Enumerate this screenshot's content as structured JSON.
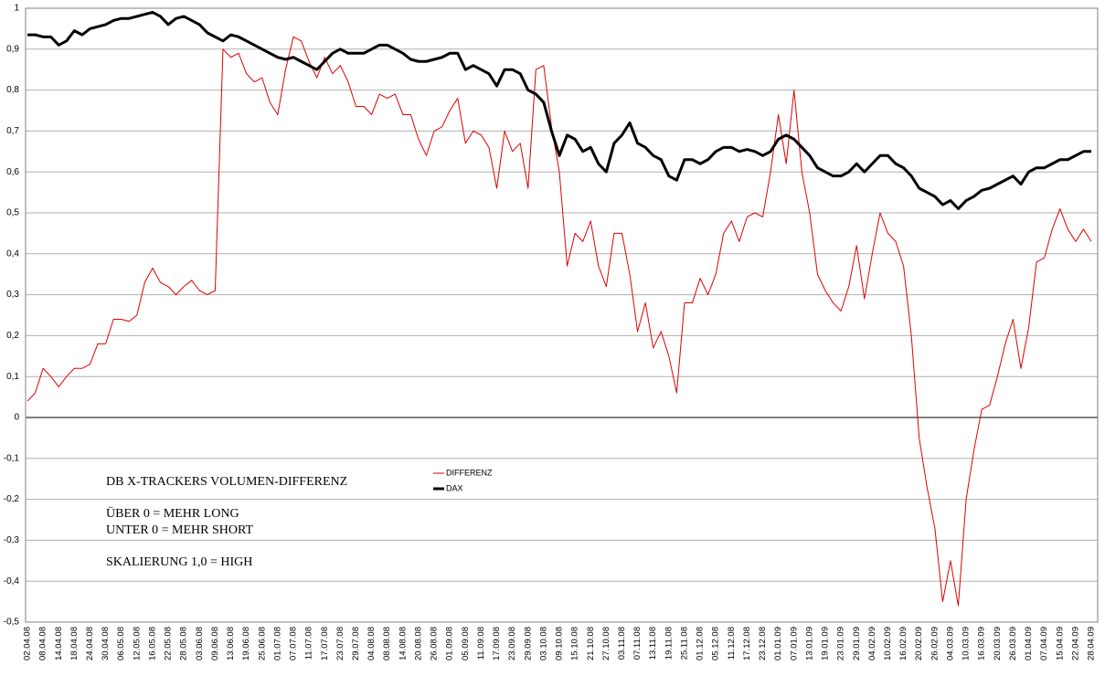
{
  "chart_data": {
    "type": "line",
    "annotations": [
      "DB X-TRACKERS VOLUMEN-DIFFERENZ",
      "ÜBER 0 = MEHR LONG",
      "UNTER 0 = MEHR SHORT",
      "SKALIERUNG 1,0 = HIGH"
    ],
    "categories": [
      "02.04.08",
      null,
      "08.04.08",
      null,
      "14.04.08",
      null,
      "18.04.08",
      null,
      "24.04.08",
      null,
      "30.04.08",
      null,
      "06.05.08",
      null,
      "12.05.08",
      null,
      "16.05.08",
      null,
      "22.05.08",
      null,
      "28.05.08",
      null,
      "03.06.08",
      null,
      "09.06.08",
      null,
      "13.06.08",
      null,
      "19.06.08",
      null,
      "25.06.08",
      null,
      "01.07.08",
      null,
      "07.07.08",
      null,
      "11.07.08",
      null,
      "17.07.08",
      null,
      "23.07.08",
      null,
      "29.07.08",
      null,
      "04.08.08",
      null,
      "08.08.08",
      null,
      "14.08.08",
      null,
      "20.08.08",
      null,
      "26.08.08",
      null,
      "01.09.08",
      null,
      "05.09.08",
      null,
      "11.09.08",
      null,
      "17.09.08",
      null,
      "23.09.08",
      null,
      "29.09.08",
      null,
      "03.10.08",
      null,
      "09.10.08",
      null,
      "15.10.08",
      null,
      "21.10.08",
      null,
      "27.10.08",
      null,
      "03.11.08",
      null,
      "07.11.08",
      null,
      "13.11.08",
      null,
      "19.11.08",
      null,
      "25.11.08",
      null,
      "01.12.08",
      null,
      "05.12.08",
      null,
      "11.12.08",
      null,
      "17.12.08",
      null,
      "23.12.08",
      null,
      "01.01.09",
      null,
      "07.01.09",
      null,
      "13.01.09",
      null,
      "19.01.09",
      null,
      "23.01.09",
      null,
      "29.01.09",
      null,
      "04.02.09",
      null,
      "10.02.09",
      null,
      "16.02.09",
      null,
      "20.02.09",
      null,
      "26.02.09",
      null,
      "04.03.09",
      null,
      "10.03.09",
      null,
      "16.03.09",
      null,
      "20.03.09",
      null,
      "26.03.09",
      null,
      "01.04.09",
      null,
      "07.04.09",
      null,
      "15.04.09",
      null,
      "22.04.09",
      null,
      "28.04.09"
    ],
    "series": [
      {
        "name": "DIFFERENZ",
        "color": "#e00000",
        "width": 1,
        "values": [
          0.04,
          0.06,
          0.12,
          0.1,
          0.075,
          0.1,
          0.12,
          0.12,
          0.13,
          0.18,
          0.18,
          0.24,
          0.24,
          0.235,
          0.25,
          0.33,
          0.365,
          0.33,
          0.32,
          0.3,
          0.32,
          0.335,
          0.31,
          0.3,
          0.31,
          0.9,
          0.88,
          0.89,
          0.84,
          0.82,
          0.83,
          0.77,
          0.74,
          0.85,
          0.93,
          0.92,
          0.87,
          0.83,
          0.88,
          0.84,
          0.86,
          0.82,
          0.76,
          0.76,
          0.74,
          0.79,
          0.78,
          0.79,
          0.74,
          0.74,
          0.68,
          0.64,
          0.7,
          0.71,
          0.75,
          0.78,
          0.67,
          0.7,
          0.69,
          0.66,
          0.56,
          0.7,
          0.65,
          0.67,
          0.56,
          0.85,
          0.86,
          0.71,
          0.6,
          0.37,
          0.45,
          0.43,
          0.48,
          0.37,
          0.32,
          0.45,
          0.45,
          0.35,
          0.21,
          0.28,
          0.17,
          0.21,
          0.15,
          0.06,
          0.28,
          0.28,
          0.34,
          0.3,
          0.35,
          0.45,
          0.48,
          0.43,
          0.49,
          0.5,
          0.49,
          0.6,
          0.74,
          0.62,
          0.8,
          0.6,
          0.5,
          0.35,
          0.31,
          0.28,
          0.26,
          0.32,
          0.42,
          0.29,
          0.4,
          0.5,
          0.45,
          0.43,
          0.37,
          0.2,
          -0.05,
          -0.17,
          -0.27,
          -0.45,
          -0.35,
          -0.46,
          -0.2,
          -0.08,
          0.02,
          0.03,
          0.1,
          0.18,
          0.24,
          0.12,
          0.22,
          0.38,
          0.39,
          0.46,
          0.51,
          0.46,
          0.43,
          0.46,
          0.43
        ]
      },
      {
        "name": "DAX",
        "color": "#000000",
        "width": 3,
        "values": [
          0.935,
          0.935,
          0.93,
          0.93,
          0.91,
          0.92,
          0.945,
          0.935,
          0.95,
          0.955,
          0.96,
          0.97,
          0.975,
          0.975,
          0.98,
          0.985,
          0.99,
          0.98,
          0.96,
          0.975,
          0.98,
          0.97,
          0.96,
          0.94,
          0.93,
          0.92,
          0.935,
          0.93,
          0.92,
          0.91,
          0.9,
          0.89,
          0.88,
          0.875,
          0.88,
          0.87,
          0.86,
          0.85,
          0.87,
          0.89,
          0.9,
          0.89,
          0.89,
          0.89,
          0.9,
          0.91,
          0.91,
          0.9,
          0.89,
          0.875,
          0.87,
          0.87,
          0.875,
          0.88,
          0.89,
          0.89,
          0.85,
          0.86,
          0.85,
          0.84,
          0.81,
          0.85,
          0.85,
          0.84,
          0.8,
          0.79,
          0.77,
          0.7,
          0.64,
          0.69,
          0.68,
          0.65,
          0.66,
          0.62,
          0.6,
          0.67,
          0.69,
          0.72,
          0.67,
          0.66,
          0.64,
          0.63,
          0.59,
          0.58,
          0.63,
          0.63,
          0.62,
          0.63,
          0.65,
          0.66,
          0.66,
          0.65,
          0.655,
          0.65,
          0.64,
          0.65,
          0.68,
          0.69,
          0.68,
          0.66,
          0.64,
          0.61,
          0.6,
          0.59,
          0.59,
          0.6,
          0.62,
          0.6,
          0.62,
          0.64,
          0.64,
          0.62,
          0.61,
          0.59,
          0.56,
          0.55,
          0.54,
          0.52,
          0.53,
          0.51,
          0.53,
          0.54,
          0.555,
          0.56,
          0.57,
          0.58,
          0.59,
          0.57,
          0.6,
          0.61,
          0.61,
          0.62,
          0.63,
          0.63,
          0.64,
          0.65,
          0.65
        ]
      }
    ],
    "ylim": [
      -0.5,
      1
    ],
    "yticks": [
      1,
      {
        "value": 0.9,
        "label": "0,9"
      },
      {
        "value": 0.8,
        "label": "0,8"
      },
      {
        "value": 0.7,
        "label": "0,7"
      },
      {
        "value": 0.6,
        "label": "0,6"
      },
      {
        "value": 0.5,
        "label": "0,5"
      },
      {
        "value": 0.4,
        "label": "0,4"
      },
      {
        "value": 0.3,
        "label": "0,3"
      },
      {
        "value": 0.2,
        "label": "0,2"
      },
      {
        "value": 0.1,
        "label": "0,1"
      },
      0,
      {
        "value": -0.1,
        "label": "-0,1"
      },
      {
        "value": -0.2,
        "label": "-0,2"
      },
      {
        "value": -0.3,
        "label": "-0,3"
      },
      {
        "value": -0.4,
        "label": "-0,4"
      },
      {
        "value": -0.5,
        "label": "-0,5"
      }
    ],
    "grid": true
  }
}
